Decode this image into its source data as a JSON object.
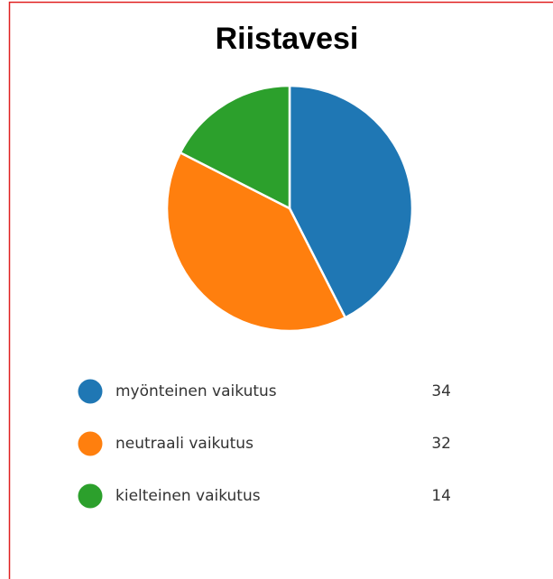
{
  "chart_data": {
    "type": "pie",
    "title": "Riistavesi",
    "categories": [
      "myönteinen vaikutus",
      "neutraali vaikutus",
      "kielteinen vaikutus"
    ],
    "values": [
      34,
      32,
      14
    ],
    "colors": [
      "#1f77b4",
      "#ff7f0e",
      "#2ca02c"
    ]
  }
}
